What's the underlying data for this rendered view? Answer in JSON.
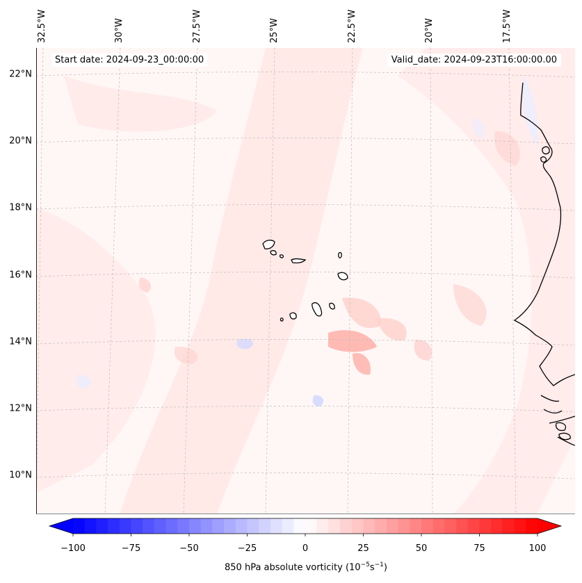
{
  "map": {
    "start_label": "Start date: 2024-09-23_00:00:00",
    "valid_label": "Valid_date: 2024-09-23T16:00:00.00",
    "lon_labels": [
      "32.5°W",
      "30°W",
      "27.5°W",
      "25°W",
      "22.5°W",
      "20°W",
      "17.5°W"
    ],
    "lat_labels": [
      "22°N",
      "20°N",
      "18°N",
      "16°N",
      "14°N",
      "12°N",
      "10°N"
    ],
    "field_colors": {
      "background": "#fff7f6",
      "light_pink": "#ffe3e1",
      "pink": "#ffcfcc",
      "red": "#ffb3ad",
      "light_blue": "#eceeff",
      "blue": "#d4d8ff"
    }
  },
  "colorbar": {
    "title_prefix": "850 hPa absolute vorticity (10",
    "title_exp1": "−5",
    "title_mid": "s",
    "title_exp2": "−1",
    "title_suffix": ")",
    "tick_labels": [
      "−100",
      "−75",
      "−50",
      "−25",
      "0",
      "25",
      "50",
      "75",
      "100"
    ],
    "range": [
      -100,
      100
    ],
    "step": 5,
    "low_color": "#0000ff",
    "mid_color": "#ffffff",
    "high_color": "#ff0000"
  }
}
